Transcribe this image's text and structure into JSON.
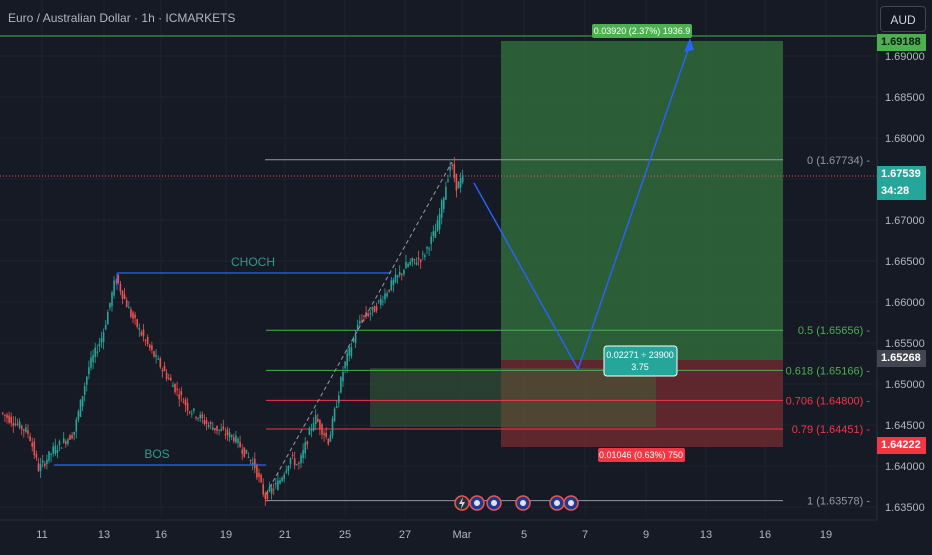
{
  "header": {
    "title": "Euro / Australian Dollar · 1h · ICMARKETS",
    "currency_button": "AUD"
  },
  "colors": {
    "background": "#161a25",
    "grid": "#1f2330",
    "candle_up": "#26a69a",
    "candle_down": "#ef5350",
    "structure_line": "#2962ff",
    "fib_gray": "#9598a1",
    "fib_green": "#4caf50",
    "fib_red": "#f23645",
    "target_zone": "#2f6b3a",
    "stop_zone": "#6b2a2f",
    "label_text": "#2a9d8f"
  },
  "price_axis": {
    "ticks": [
      "1.69000",
      "1.68500",
      "1.68000",
      "1.67500",
      "1.67000",
      "1.66500",
      "1.66000",
      "1.65500",
      "1.65000",
      "1.64500",
      "1.64000",
      "1.63500"
    ],
    "badges": {
      "target_price": "1.69188",
      "current_price": "1.67539",
      "countdown": "34:28",
      "entry_price": "1.65268",
      "stop_price": "1.64222"
    }
  },
  "time_axis": {
    "ticks": [
      "11",
      "13",
      "16",
      "19",
      "21",
      "25",
      "27",
      "Mar",
      "5",
      "7",
      "9",
      "13",
      "16",
      "19"
    ]
  },
  "fib_levels": [
    {
      "label": "0 (1.67734)",
      "price": 1.67734,
      "color": "gray"
    },
    {
      "label": "0.5 (1.65656)",
      "price": 1.65656,
      "color": "green"
    },
    {
      "label": "0.618 (1.65166)",
      "price": 1.65166,
      "color": "green"
    },
    {
      "label": "0.706 (1.64800)",
      "price": 1.648,
      "color": "red"
    },
    {
      "label": "0.79 (1.64451)",
      "price": 1.64451,
      "color": "red"
    },
    {
      "label": "1 (1.63578)",
      "price": 1.63578,
      "color": "gray"
    }
  ],
  "annotations": {
    "choch": "CHOCH",
    "bos": "BOS"
  },
  "position": {
    "target_label": "0.03920 (2.37%) 1936.9",
    "entry_label_line1": "0.02271 ÷ 23900",
    "entry_label_line2": "3.75",
    "stop_label": "0.01046 (0.63%) 750"
  },
  "event_icons": [
    "lightning-event-icon",
    "australia-flag-icon",
    "us-flag-icon",
    "australia-flag-icon",
    "us-flag-icon",
    "australia-flag-icon"
  ]
}
